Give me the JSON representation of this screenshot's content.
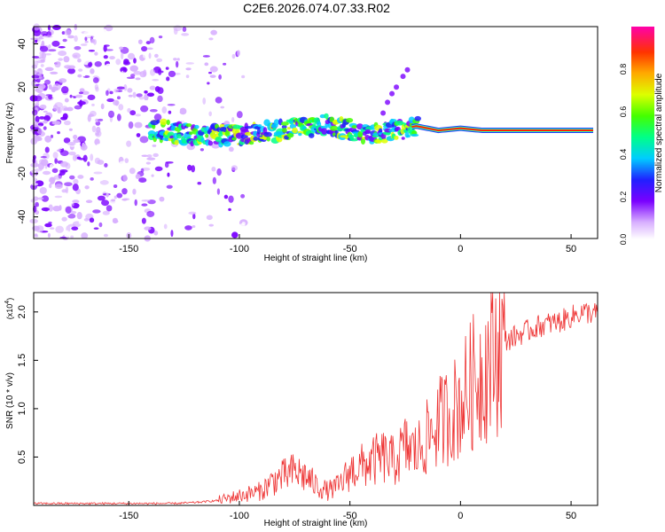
{
  "title": "C2E6.2026.074.07.33.R02",
  "chart_data": [
    {
      "type": "heatmap",
      "xlabel": "Height of straight line (km)",
      "ylabel": "Frequency (Hz)",
      "xlim": [
        -193,
        62
      ],
      "ylim": [
        -50,
        48
      ],
      "xticks": [
        -150,
        -100,
        -50,
        0,
        50
      ],
      "yticks": [
        -40,
        -20,
        0,
        20,
        40
      ],
      "description_series": [
        {
          "name": "central line",
          "x": [
            -140,
            -120,
            -100,
            -80,
            -60,
            -50,
            -40,
            -30,
            -20,
            -10,
            0,
            10,
            20,
            40,
            60
          ],
          "y": [
            0,
            -2,
            -2,
            0,
            3,
            0,
            -2,
            0,
            2,
            0,
            1,
            0,
            0,
            0,
            0
          ]
        }
      ],
      "colorbar": {
        "label": "Normalized spectral amplitude",
        "range": [
          0,
          1
        ],
        "ticks": [
          "0.0",
          "0.2",
          "0.4",
          "0.6",
          "0.8"
        ]
      }
    },
    {
      "type": "line",
      "xlabel": "Height of straight line (km)",
      "ylabel": "SNR (10 * v/v)",
      "scale_label": "(x10",
      "scale_exp": "4",
      "scale_close": ")",
      "xlim": [
        -193,
        62
      ],
      "ylim": [
        0,
        2.2
      ],
      "xticks": [
        -150,
        -100,
        -50,
        0,
        50
      ],
      "yticks": [
        "0.5",
        "1.0",
        "1.5",
        "2.0"
      ],
      "color": "#ee3333",
      "series": [
        {
          "name": "SNR",
          "x": [
            -193,
            -170,
            -150,
            -130,
            -120,
            -110,
            -100,
            -90,
            -85,
            -80,
            -75,
            -70,
            -65,
            -60,
            -55,
            -50,
            -45,
            -40,
            -35,
            -30,
            -25,
            -20,
            -15,
            -10,
            -5,
            0,
            5,
            10,
            15,
            20,
            25,
            30,
            35,
            40,
            45,
            50,
            55,
            62
          ],
          "y": [
            0.02,
            0.02,
            0.02,
            0.02,
            0.03,
            0.05,
            0.1,
            0.15,
            0.25,
            0.3,
            0.35,
            0.3,
            0.2,
            0.15,
            0.2,
            0.35,
            0.4,
            0.45,
            0.5,
            0.45,
            0.6,
            0.55,
            0.7,
            0.85,
            0.95,
            1.05,
            1.25,
            1.4,
            1.55,
            1.7,
            1.75,
            1.8,
            1.85,
            1.88,
            1.9,
            1.95,
            2.0,
            1.98
          ]
        }
      ]
    }
  ]
}
